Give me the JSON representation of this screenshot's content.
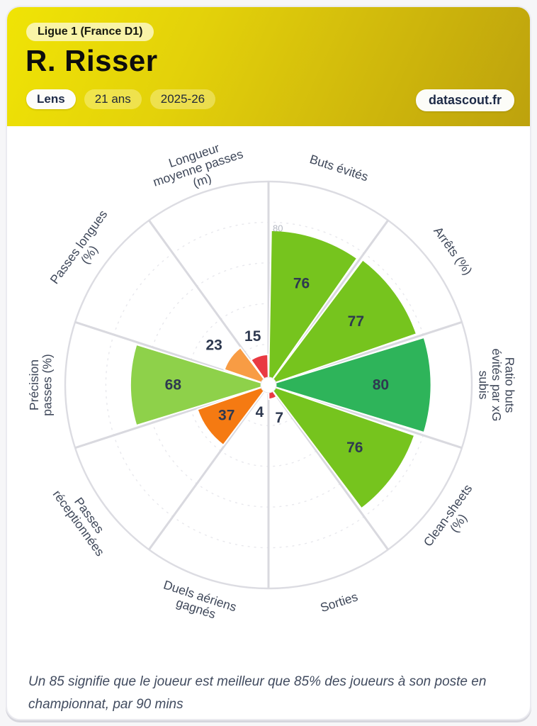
{
  "header": {
    "league_badge": "Ligue 1 (France D1)",
    "player_name": "R. Risser",
    "pills": {
      "team": "Lens",
      "age": "21 ans",
      "season": "2025-26"
    },
    "brand": "datascout.fr",
    "colors": {
      "gradient_left": "#f0e405",
      "gradient_right": "#bda20d",
      "accent_navy": "#1d2a47"
    }
  },
  "chart_data": {
    "type": "bar",
    "subtype": "polar-pizza",
    "title": "",
    "categories": [
      "Buts évités",
      "Arrêts (%)",
      "Ratio buts évités par xG subis",
      "Clean-sheets (%)",
      "Sorties",
      "Duels aériens gagnés",
      "Passes réceptionnées",
      "Précision passes (%)",
      "Passes longues (%)",
      "Longueur moyenne passes (m)"
    ],
    "values": [
      76,
      77,
      80,
      76,
      7,
      4,
      37,
      68,
      23,
      15
    ],
    "colors": [
      "#76c41e",
      "#76c41e",
      "#2eb45a",
      "#76c41e",
      "#e93a42",
      "#e93a42",
      "#f57a12",
      "#8ed14a",
      "#f89c44",
      "#e93a42"
    ],
    "label_lines": [
      [
        "Buts évités"
      ],
      [
        "Arrêts (%)"
      ],
      [
        "Ratio buts",
        "évités par xG",
        "subis"
      ],
      [
        "Clean-sheets",
        "(%)"
      ],
      [
        "Sorties"
      ],
      [
        "Duels aériens",
        "gagnés"
      ],
      [
        "Passes",
        "réceptionnées"
      ],
      [
        "Précision",
        "passes (%)"
      ],
      [
        "Passes longues",
        "(%)"
      ],
      [
        "Longueur",
        "moyenne passes",
        "(m)"
      ]
    ],
    "axis_range": [
      0,
      100
    ],
    "grid_ticks": [
      20,
      40,
      60,
      80
    ],
    "visible_tick_label": "80",
    "start_angle_deg": 0,
    "direction": "clockwise",
    "grid": "dashed-circles",
    "legend_position": "none",
    "style": {
      "grid_color": "#e8e8ed",
      "ring_color": "#dcdce2",
      "spoke_color": "#d9d9df",
      "value_label_color": "#2e3950",
      "axis_label_color": "#3e4759",
      "tick_label_color": "#b4b8c2"
    }
  },
  "footer": {
    "note": "Un 85 signifie que le joueur est meilleur que 85% des joueurs à son poste en championnat, par 90 mins"
  }
}
